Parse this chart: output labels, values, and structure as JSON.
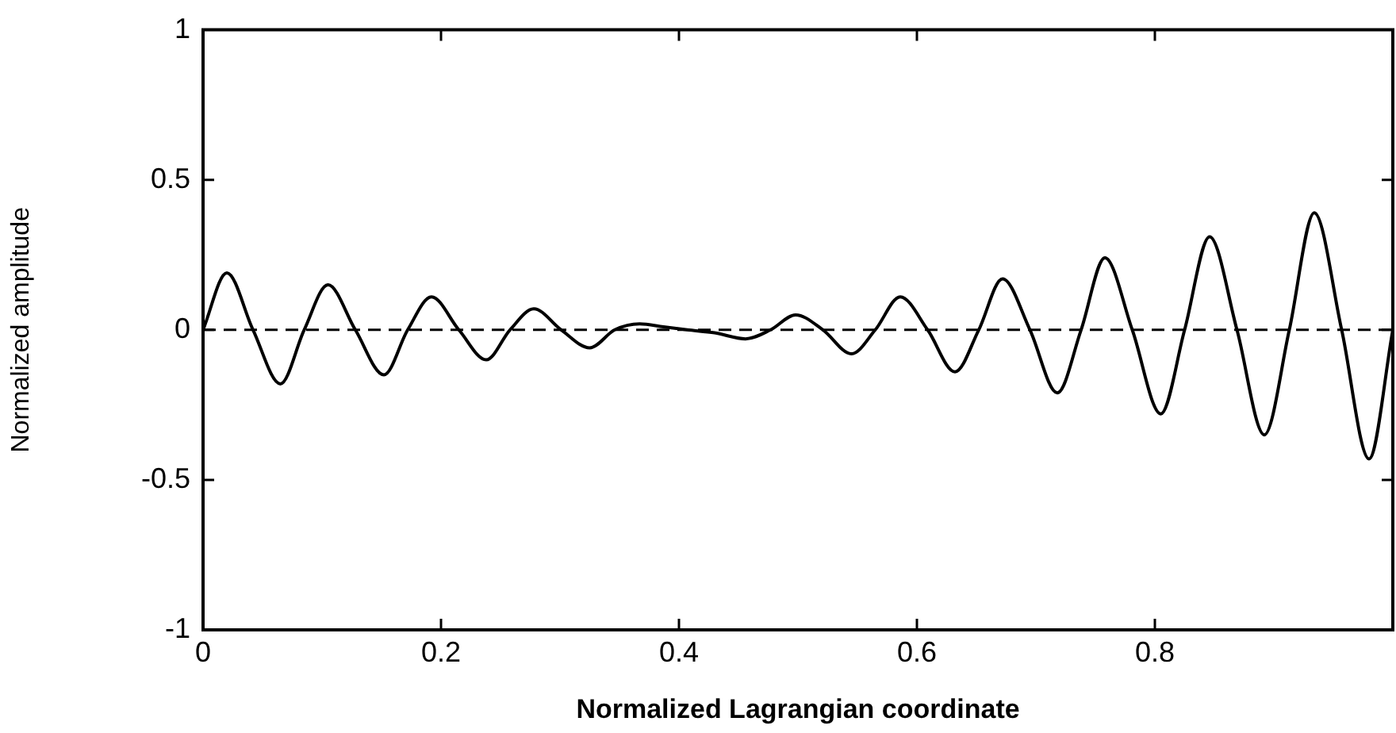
{
  "chart_data": {
    "type": "line",
    "xlabel": "Normalized Lagrangian coordinate",
    "ylabel": "Normalized amplitude",
    "xlim": [
      0,
      1
    ],
    "xticks": [
      0,
      0.2,
      0.4,
      0.6,
      0.8
    ],
    "ylim": [
      -1,
      1
    ],
    "yticks": [
      -1,
      -0.5,
      0,
      0.5,
      1
    ],
    "grid": false,
    "legend": false,
    "marker": "none",
    "line_style": "solid",
    "ref_lines": [
      {
        "axis": "y",
        "value": 0,
        "line_style": "dashed",
        "color": "#000000"
      }
    ],
    "series": [
      {
        "color": "#000000",
        "x": [
          0,
          0.02,
          0.042,
          0.065,
          0.085,
          0.105,
          0.128,
          0.152,
          0.172,
          0.192,
          0.215,
          0.238,
          0.258,
          0.278,
          0.301,
          0.325,
          0.346,
          0.367,
          0.387,
          0.407,
          0.43,
          0.456,
          0.477,
          0.498,
          0.521,
          0.545,
          0.565,
          0.586,
          0.609,
          0.632,
          0.652,
          0.672,
          0.695,
          0.718,
          0.738,
          0.758,
          0.781,
          0.805,
          0.825,
          0.846,
          0.869,
          0.892,
          0.913,
          0.934,
          0.957,
          0.98,
          1
        ],
        "values": [
          0,
          0.19,
          0,
          -0.18,
          0,
          0.15,
          0,
          -0.15,
          0,
          0.11,
          0,
          -0.1,
          0,
          0.07,
          0,
          -0.06,
          0,
          0.02,
          0.01,
          0,
          -0.01,
          -0.03,
          0,
          0.05,
          0,
          -0.08,
          0,
          0.11,
          0,
          -0.14,
          0,
          0.17,
          0,
          -0.21,
          0,
          0.24,
          0,
          -0.28,
          0,
          0.31,
          0,
          -0.35,
          0,
          0.39,
          0,
          -0.43,
          0
        ]
      }
    ]
  }
}
